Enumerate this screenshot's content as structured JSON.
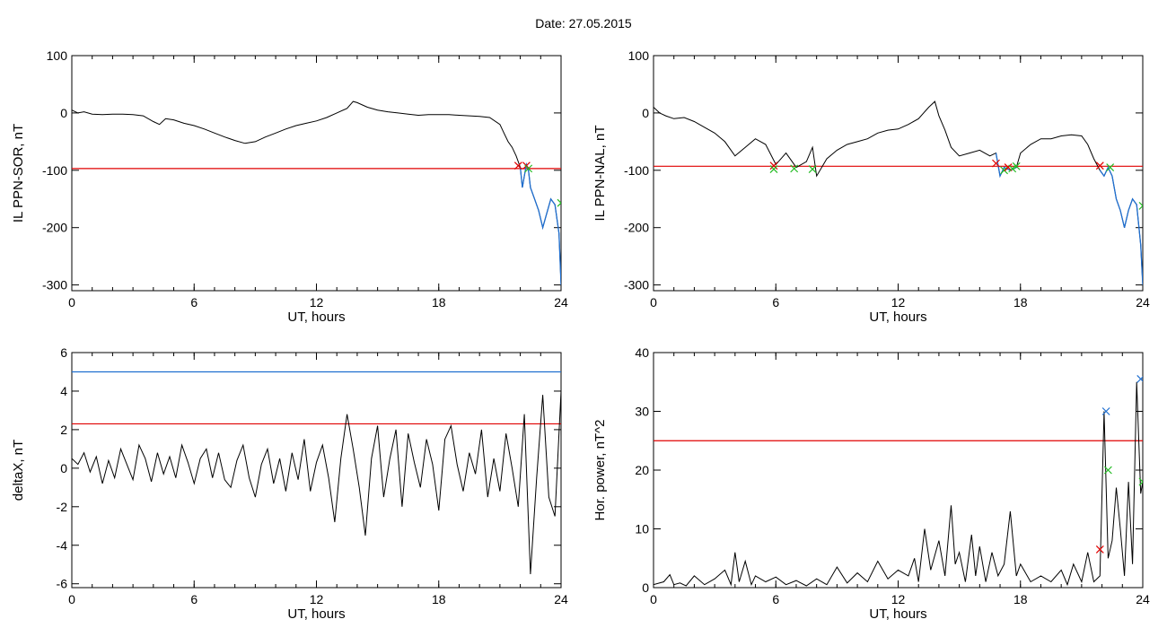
{
  "date_label": "Date:  27.05.2015",
  "colors": {
    "trace": "#000000",
    "threshold_red": "#e00000",
    "threshold_blue": "#1f6fd0",
    "storm_blue": "#1f6fd0",
    "marker_red": "#e00000",
    "marker_green": "#22bb22",
    "marker_blue": "#1f6fd0"
  },
  "chart_data": [
    {
      "type": "line",
      "title": "",
      "xlabel": "UT, hours",
      "ylabel": "IL PPN-SOR, nT",
      "xlim": [
        0,
        24
      ],
      "ylim": [
        -310,
        100
      ],
      "xticks": [
        0,
        6,
        12,
        18,
        24
      ],
      "yticks": [
        100,
        0,
        -100,
        -200,
        -300
      ],
      "x": [
        0,
        0.3,
        0.6,
        1,
        1.5,
        2,
        2.5,
        3,
        3.5,
        4,
        4.3,
        4.6,
        5,
        5.5,
        6,
        6.5,
        7,
        7.5,
        8,
        8.5,
        9,
        9.5,
        10,
        10.5,
        11,
        11.5,
        12,
        12.5,
        13,
        13.5,
        13.8,
        14,
        14.5,
        15,
        15.5,
        16,
        16.5,
        17,
        17.5,
        18,
        18.5,
        19,
        19.5,
        20,
        20.5,
        21,
        21.2,
        21.4,
        21.6,
        21.8,
        22,
        22.1,
        22.2,
        22.3,
        22.4,
        22.5,
        22.7,
        22.9,
        23.1,
        23.3,
        23.5,
        23.7,
        23.9,
        24
      ],
      "series": [
        {
          "values": [
            5,
            0,
            2,
            -2,
            -3,
            -2,
            -2,
            -3,
            -5,
            -15,
            -20,
            -10,
            -12,
            -18,
            -22,
            -28,
            -35,
            -42,
            -48,
            -53,
            -50,
            -42,
            -35,
            -28,
            -22,
            -18,
            -14,
            -8,
            0,
            8,
            20,
            18,
            10,
            5,
            2,
            0,
            -2,
            -4,
            -3,
            -3,
            -3,
            -4,
            -5,
            -6,
            -8,
            -20,
            -35,
            -50,
            -60,
            -75,
            -95,
            -130,
            -110,
            -90,
            -100,
            -130,
            -150,
            -170,
            -200,
            -175,
            -150,
            -160,
            -210,
            -300
          ]
        }
      ],
      "thresholds": [
        {
          "value": -97,
          "color": "red"
        }
      ],
      "markers": [
        {
          "x": 21.9,
          "y": -92,
          "color": "red"
        },
        {
          "x": 22.3,
          "y": -92,
          "color": "red"
        },
        {
          "x": 22.4,
          "y": -97,
          "color": "green"
        },
        {
          "x": 24,
          "y": -157,
          "color": "green"
        }
      ],
      "storm_segment_from_x": 21.9
    },
    {
      "type": "line",
      "title": "",
      "xlabel": "UT, hours",
      "ylabel": "IL PPN-NAL, nT",
      "xlim": [
        0,
        24
      ],
      "ylim": [
        -310,
        100
      ],
      "xticks": [
        0,
        6,
        12,
        18,
        24
      ],
      "yticks": [
        100,
        0,
        -100,
        -200,
        -300
      ],
      "x": [
        0,
        0.3,
        0.6,
        1,
        1.5,
        2,
        2.5,
        3,
        3.5,
        4,
        4.5,
        5,
        5.5,
        6,
        6.5,
        7,
        7.5,
        7.8,
        8,
        8.5,
        9,
        9.5,
        10,
        10.5,
        11,
        11.5,
        12,
        12.5,
        13,
        13.5,
        13.8,
        14,
        14.3,
        14.6,
        15,
        15.5,
        16,
        16.5,
        16.8,
        17,
        17.2,
        17.5,
        17.8,
        18,
        18.5,
        19,
        19.5,
        20,
        20.5,
        21,
        21.3,
        21.6,
        21.9,
        22.1,
        22.3,
        22.5,
        22.7,
        22.9,
        23.1,
        23.3,
        23.5,
        23.7,
        23.9,
        24
      ],
      "series": [
        {
          "values": [
            10,
            0,
            -5,
            -10,
            -8,
            -15,
            -25,
            -35,
            -50,
            -75,
            -60,
            -45,
            -55,
            -90,
            -70,
            -95,
            -85,
            -60,
            -110,
            -80,
            -65,
            -55,
            -50,
            -45,
            -35,
            -30,
            -28,
            -20,
            -10,
            10,
            20,
            -5,
            -30,
            -60,
            -75,
            -70,
            -65,
            -75,
            -70,
            -110,
            -95,
            -100,
            -95,
            -70,
            -55,
            -45,
            -45,
            -40,
            -38,
            -40,
            -55,
            -80,
            -100,
            -110,
            -95,
            -110,
            -150,
            -170,
            -200,
            -170,
            -150,
            -160,
            -230,
            -300
          ]
        }
      ],
      "thresholds": [
        {
          "value": -93,
          "color": "red"
        }
      ],
      "markers": [
        {
          "x": 5.9,
          "y": -92,
          "color": "red"
        },
        {
          "x": 5.9,
          "y": -98,
          "color": "green"
        },
        {
          "x": 6.9,
          "y": -97,
          "color": "green"
        },
        {
          "x": 7.8,
          "y": -98,
          "color": "green"
        },
        {
          "x": 16.8,
          "y": -88,
          "color": "red"
        },
        {
          "x": 17.2,
          "y": -100,
          "color": "green"
        },
        {
          "x": 17.4,
          "y": -95,
          "color": "red"
        },
        {
          "x": 17.6,
          "y": -97,
          "color": "green"
        },
        {
          "x": 17.8,
          "y": -93,
          "color": "green"
        },
        {
          "x": 21.9,
          "y": -92,
          "color": "red"
        },
        {
          "x": 22.4,
          "y": -95,
          "color": "green"
        },
        {
          "x": 24,
          "y": -162,
          "color": "green"
        }
      ],
      "storm_segments": [
        [
          16.8,
          17.9
        ],
        [
          21.9,
          24
        ]
      ]
    },
    {
      "type": "line",
      "title": "",
      "xlabel": "UT, hours",
      "ylabel": "deltaX, nT",
      "xlim": [
        0,
        24
      ],
      "ylim": [
        -6.2,
        6
      ],
      "xticks": [
        0,
        6,
        12,
        18,
        24
      ],
      "yticks": [
        6,
        4,
        2,
        0,
        -2,
        -4,
        -6
      ],
      "x": [
        0,
        0.3,
        0.6,
        0.9,
        1.2,
        1.5,
        1.8,
        2.1,
        2.4,
        2.7,
        3,
        3.3,
        3.6,
        3.9,
        4.2,
        4.5,
        4.8,
        5.1,
        5.4,
        5.7,
        6,
        6.3,
        6.6,
        6.9,
        7.2,
        7.5,
        7.8,
        8.1,
        8.4,
        8.7,
        9,
        9.3,
        9.6,
        9.9,
        10.2,
        10.5,
        10.8,
        11.1,
        11.4,
        11.7,
        12,
        12.3,
        12.6,
        12.9,
        13.2,
        13.5,
        13.8,
        14.1,
        14.4,
        14.7,
        15,
        15.3,
        15.6,
        15.9,
        16.2,
        16.5,
        16.8,
        17.1,
        17.4,
        17.7,
        18,
        18.3,
        18.6,
        18.9,
        19.2,
        19.5,
        19.8,
        20.1,
        20.4,
        20.7,
        21,
        21.3,
        21.6,
        21.9,
        22.2,
        22.5,
        22.8,
        23.1,
        23.4,
        23.7,
        24
      ],
      "series": [
        {
          "values": [
            0.5,
            0.2,
            0.8,
            -0.2,
            0.6,
            -0.8,
            0.4,
            -0.5,
            1.0,
            0.2,
            -0.6,
            1.2,
            0.5,
            -0.7,
            0.8,
            -0.3,
            0.6,
            -0.5,
            1.2,
            0.3,
            -0.8,
            0.5,
            1.0,
            -0.5,
            0.8,
            -0.6,
            -1.0,
            0.4,
            1.2,
            -0.5,
            -1.5,
            0.2,
            1.0,
            -0.8,
            0.5,
            -1.2,
            0.8,
            -0.6,
            1.5,
            -1.2,
            0.3,
            1.2,
            -0.5,
            -2.8,
            0.5,
            2.8,
            1.0,
            -1.0,
            -3.5,
            0.5,
            2.2,
            -1.5,
            0.5,
            2.0,
            -2.0,
            1.8,
            0.3,
            -1.0,
            1.5,
            0.2,
            -2.2,
            1.5,
            2.2,
            0.2,
            -1.2,
            0.8,
            -0.3,
            2.0,
            -1.5,
            0.5,
            -1.2,
            1.8,
            0.0,
            -2.0,
            2.8,
            -5.5,
            -0.5,
            3.8,
            -1.5,
            -2.5,
            4.0
          ]
        }
      ],
      "thresholds": [
        {
          "value": 5.0,
          "color": "blue"
        },
        {
          "value": 2.3,
          "color": "red"
        }
      ]
    },
    {
      "type": "line",
      "title": "",
      "xlabel": "UT, hours",
      "ylabel": "Hor. power, nT^2",
      "xlim": [
        0,
        24
      ],
      "ylim": [
        0,
        40
      ],
      "xticks": [
        0,
        6,
        12,
        18,
        24
      ],
      "yticks": [
        40,
        30,
        20,
        10,
        0
      ],
      "x": [
        0,
        0.5,
        0.8,
        1,
        1.3,
        1.6,
        2,
        2.5,
        3,
        3.5,
        3.8,
        4,
        4.2,
        4.5,
        4.8,
        5,
        5.5,
        6,
        6.5,
        7,
        7.5,
        8,
        8.5,
        9,
        9.5,
        10,
        10.5,
        11,
        11.5,
        12,
        12.5,
        12.8,
        13,
        13.3,
        13.6,
        14,
        14.3,
        14.6,
        14.8,
        15,
        15.3,
        15.6,
        15.8,
        16,
        16.3,
        16.6,
        16.9,
        17.2,
        17.5,
        17.8,
        18,
        18.5,
        19,
        19.5,
        20,
        20.3,
        20.6,
        21,
        21.3,
        21.6,
        21.9,
        22.1,
        22.3,
        22.5,
        22.7,
        22.9,
        23.1,
        23.3,
        23.5,
        23.7,
        23.9,
        24
      ],
      "series": [
        {
          "values": [
            0.5,
            1,
            2.2,
            0.5,
            0.8,
            0.3,
            2,
            0.5,
            1.5,
            3,
            0.5,
            6,
            1,
            4.5,
            0.5,
            2,
            1,
            1.8,
            0.5,
            1.2,
            0.3,
            1.5,
            0.5,
            3.5,
            0.8,
            2.5,
            1,
            4.5,
            1.5,
            3,
            2,
            5,
            1,
            10,
            3,
            8,
            2,
            14,
            4,
            6,
            1,
            9,
            2,
            7,
            1,
            6,
            2,
            4,
            13,
            2,
            4,
            1,
            2,
            1,
            3,
            0.5,
            4,
            1,
            6,
            1,
            2,
            30,
            5,
            8,
            17,
            10,
            2,
            18,
            4,
            35,
            16,
            18
          ]
        }
      ],
      "thresholds": [
        {
          "value": 25,
          "color": "red"
        }
      ],
      "markers": [
        {
          "x": 21.9,
          "y": 6.5,
          "color": "red"
        },
        {
          "x": 22.2,
          "y": 30,
          "color": "blue"
        },
        {
          "x": 22.3,
          "y": 20,
          "color": "green"
        },
        {
          "x": 23.9,
          "y": 35.5,
          "color": "blue"
        },
        {
          "x": 24,
          "y": 18,
          "color": "green"
        }
      ]
    }
  ]
}
